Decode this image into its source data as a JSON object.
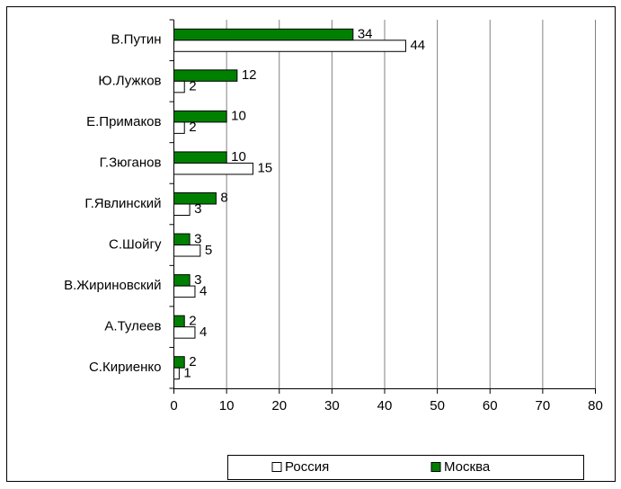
{
  "chart_data": {
    "type": "barh",
    "categories": [
      "В.Путин",
      "Ю.Лужков",
      "Е.Примаков",
      "Г.Зюганов",
      "Г.Явлинский",
      "С.Шойгу",
      "В.Жириновский",
      "А.Тулеев",
      "С.Кириенко"
    ],
    "series": [
      {
        "name": "Россия",
        "color": "#ffffff",
        "values": [
          44,
          2,
          2,
          15,
          3,
          5,
          4,
          4,
          1
        ]
      },
      {
        "name": "Москва",
        "color": "#008000",
        "values": [
          34,
          12,
          10,
          10,
          8,
          3,
          3,
          2,
          2
        ]
      }
    ],
    "xlim": [
      0,
      80
    ],
    "xticks": [
      0,
      10,
      20,
      30,
      40,
      50,
      60,
      70,
      80
    ],
    "grid": true
  }
}
